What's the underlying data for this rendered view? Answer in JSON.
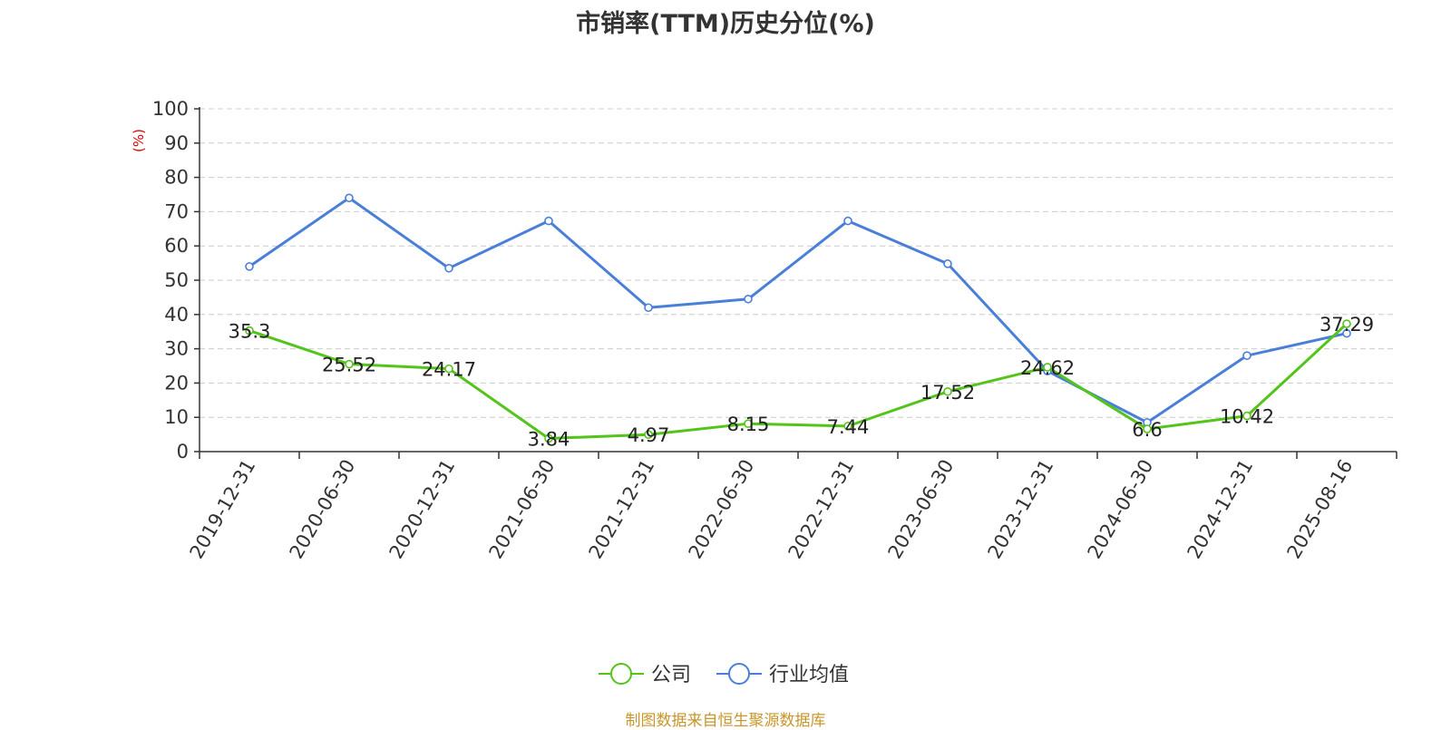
{
  "chart_data": {
    "type": "line",
    "title": "市销率(TTM)历史分位(%)",
    "ylabel": "(%)",
    "ylim": [
      0,
      100
    ],
    "yticks": [
      0,
      10,
      20,
      30,
      40,
      50,
      60,
      70,
      80,
      90,
      100
    ],
    "grid": true,
    "legend_position": "bottom-center",
    "categories": [
      "2019-12-31",
      "2020-06-30",
      "2020-12-31",
      "2021-06-30",
      "2021-12-31",
      "2022-06-30",
      "2022-12-31",
      "2023-06-30",
      "2023-12-31",
      "2024-06-30",
      "2024-12-31",
      "2025-08-16"
    ],
    "series": [
      {
        "name": "公司",
        "color": "#52c41a",
        "values": [
          35.3,
          25.52,
          24.17,
          3.84,
          4.97,
          8.15,
          7.44,
          17.52,
          24.62,
          6.6,
          10.42,
          37.29
        ],
        "labels": [
          "35.3",
          "25.52",
          "24.17",
          "3.84",
          "4.97",
          "8.15",
          "7.44",
          "17.52",
          "24.62",
          "6.6",
          "10.42",
          "37.29"
        ]
      },
      {
        "name": "行业均值",
        "color": "#4a7fd9",
        "values": [
          54,
          74,
          53.5,
          67.3,
          42,
          44.5,
          67.3,
          54.8,
          23.5,
          8.5,
          28,
          34.5
        ]
      }
    ]
  },
  "source": "制图数据来自恒生聚源数据库",
  "colors": {
    "axis": "#333333",
    "grid": "#cccccc",
    "ylabel": "#e00000"
  }
}
